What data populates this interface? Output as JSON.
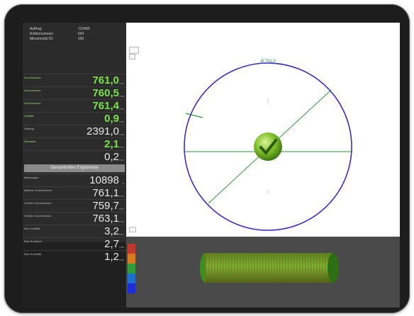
{
  "info": {
    "rows": [
      {
        "label": "Auftrag:",
        "value": "123456"
      },
      {
        "label": "Rollennummer:",
        "value": "654"
      },
      {
        "label": "Messmodul ID:",
        "value": "150"
      }
    ]
  },
  "measurements": [
    {
      "label": "Durchmesser",
      "value": "761,0",
      "unit": "mm",
      "style": "green"
    },
    {
      "label": "Durchmesser",
      "value": "760,5",
      "unit": "mm",
      "style": "green"
    },
    {
      "label": "Durchmesser",
      "value": "761,4",
      "unit": "mm",
      "style": "green"
    },
    {
      "label": "Ovalität",
      "value": "0,9",
      "unit": "mm",
      "style": "green"
    },
    {
      "label": "Umfang",
      "value": "2391,0",
      "unit": "mm",
      "style": "white"
    },
    {
      "label": "Rundlauf",
      "value": "2,1",
      "unit": "mm",
      "style": "green"
    },
    {
      "label": "",
      "value": "0,2",
      "unit": "mm",
      "style": "white"
    }
  ],
  "section_title": "Gesamtrollen Ergebnisse",
  "results": [
    {
      "label": "Messungen",
      "value": "10898",
      "unit": "#"
    },
    {
      "label": "Mittlerer Durchmesser",
      "value": "761,1",
      "unit": "mm"
    },
    {
      "label": "Größter Durchmesser",
      "value": "759,7",
      "unit": "mm"
    },
    {
      "label": "Größter Durchmesser",
      "value": "763,1",
      "unit": "mm"
    },
    {
      "label": "Max Ovalität",
      "value": "3,2",
      "unit": "mm"
    },
    {
      "label": "Max Rundlauf",
      "value": "2,7",
      "unit": "mm"
    },
    {
      "label": "Max Konizität",
      "value": "1,2",
      "unit": "mm"
    }
  ],
  "view": {
    "circle_label": "Ø 761,0",
    "status_icon": "checkmark-icon",
    "circle_color": "#3a2fbf",
    "line_color": "#2f9a3c",
    "ball_color": "#7fbf2a"
  },
  "legend": {
    "colors": [
      "#c0392b",
      "#d97a1e",
      "#2e9c3a",
      "#1f6fd0",
      "#1c2fd6"
    ]
  }
}
